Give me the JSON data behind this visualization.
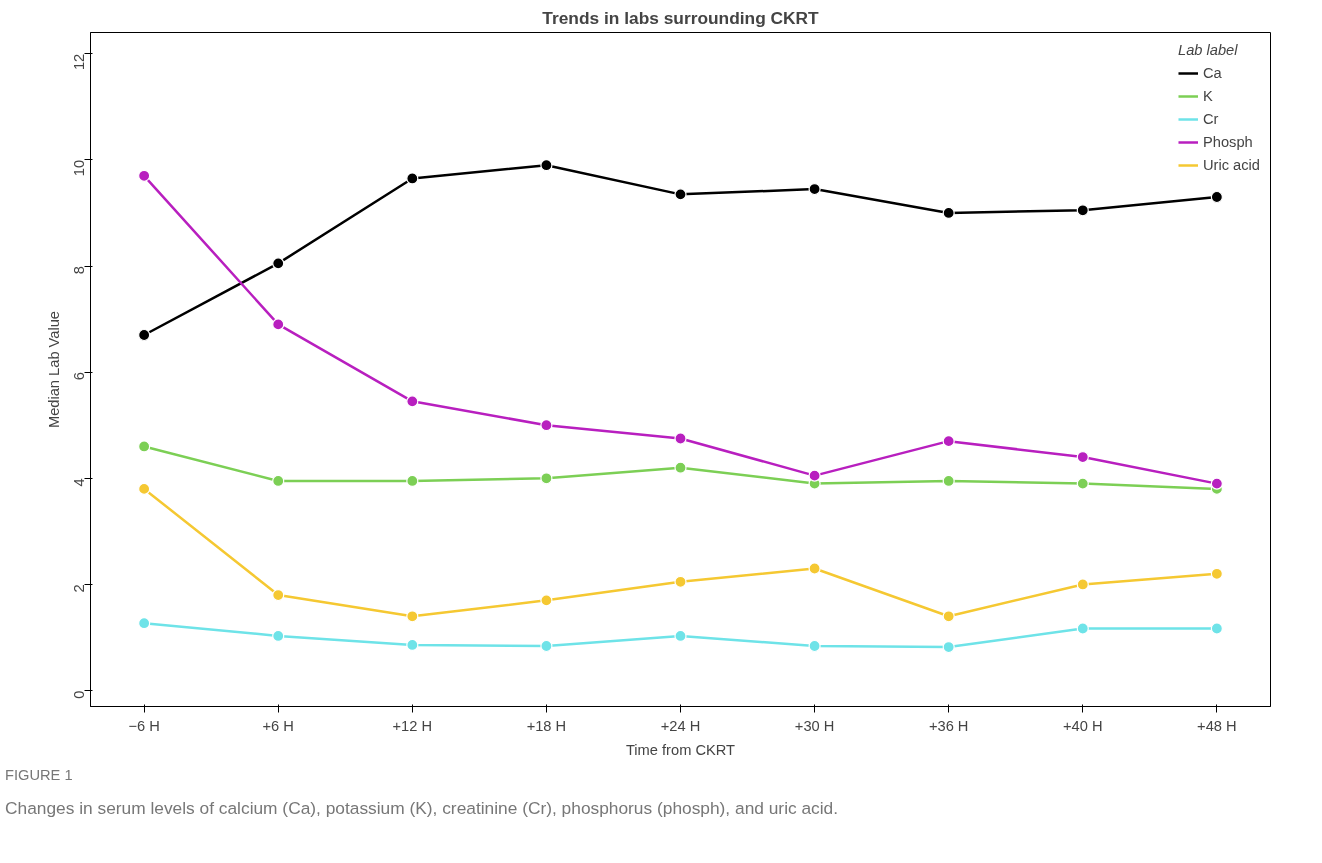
{
  "chart_data": {
    "type": "line",
    "title": "Trends in labs surrounding CKRT",
    "xlabel": "Time from CKRT",
    "ylabel": "Median Lab Value",
    "legend_title": "Lab label",
    "legend": "top right",
    "marker": "circle",
    "line_style": "solid",
    "grid": false,
    "categories": [
      "−6 H",
      "+6 H",
      "+12 H",
      "+18 H",
      "+24 H",
      "+30 H",
      "+36 H",
      "+40 H",
      "+48 H"
    ],
    "ylim": [
      -0.3,
      12.4
    ],
    "yticks": [
      0,
      2,
      4,
      6,
      8,
      10,
      12
    ],
    "series": [
      {
        "name": "Ca",
        "color": "#000000",
        "values": [
          6.7,
          8.05,
          9.65,
          9.9,
          9.35,
          9.45,
          9.0,
          9.05,
          9.3
        ]
      },
      {
        "name": "K",
        "color": "#7ccf55",
        "values": [
          4.6,
          3.95,
          3.95,
          4.0,
          4.2,
          3.9,
          3.95,
          3.9,
          3.8
        ]
      },
      {
        "name": "Cr",
        "color": "#6ee3e8",
        "values": [
          1.27,
          1.03,
          0.86,
          0.84,
          1.03,
          0.84,
          0.82,
          1.17,
          1.17
        ]
      },
      {
        "name": "Phosph",
        "color": "#b81fbf",
        "values": [
          9.7,
          6.9,
          5.45,
          5.0,
          4.75,
          4.05,
          4.7,
          4.4,
          3.9
        ]
      },
      {
        "name": "Uric acid",
        "color": "#f5c832",
        "values": [
          3.8,
          1.8,
          1.4,
          1.7,
          2.05,
          2.3,
          1.4,
          2.0,
          2.2
        ]
      }
    ],
    "annotations": [
      "FIGURE 1",
      "Changes in serum levels of calcium (Ca), potassium (K), creatinine (Cr), phosphorus (phosph), and uric acid."
    ]
  }
}
